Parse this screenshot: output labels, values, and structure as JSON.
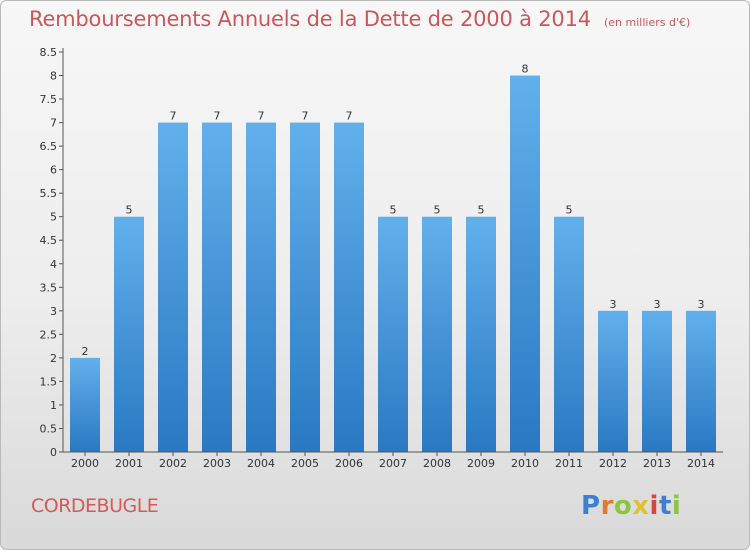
{
  "chart_data": {
    "type": "bar",
    "title": "Remboursements Annuels de la Dette de 2000 à 2014",
    "unit_note": "(en milliers d'€)",
    "categories": [
      "2000",
      "2001",
      "2002",
      "2003",
      "2004",
      "2005",
      "2006",
      "2007",
      "2008",
      "2009",
      "2010",
      "2011",
      "2012",
      "2013",
      "2014"
    ],
    "values": [
      2,
      5,
      7,
      7,
      7,
      7,
      7,
      5,
      5,
      5,
      8,
      5,
      3,
      3,
      3
    ],
    "data_labels": [
      "2",
      "5",
      "7",
      "7",
      "7",
      "7",
      "7",
      "5",
      "5",
      "5",
      "8",
      "5",
      "3",
      "3",
      "3"
    ],
    "ylim": [
      0,
      8.5
    ],
    "yticks": [
      "0",
      "0.5",
      "1",
      "1.5",
      "2",
      "2.5",
      "3",
      "3.5",
      "4",
      "4.5",
      "5",
      "5.5",
      "6",
      "6.5",
      "7",
      "7.5",
      "8",
      "8.5"
    ],
    "grid": false,
    "colors": {
      "bar_top": "#62b0eb",
      "bar_bottom": "#2a78c2",
      "title": "#c8585a"
    }
  },
  "commune": "CORDEBUGLE",
  "logo": {
    "letters": [
      "P",
      "r",
      "o",
      "x",
      "i",
      "t",
      "i"
    ],
    "colors": [
      "#3f7fd0",
      "#e2792c",
      "#8cc63f",
      "#e2c22c",
      "#d9453d",
      "#3f7fd0",
      "#8cc63f"
    ]
  }
}
